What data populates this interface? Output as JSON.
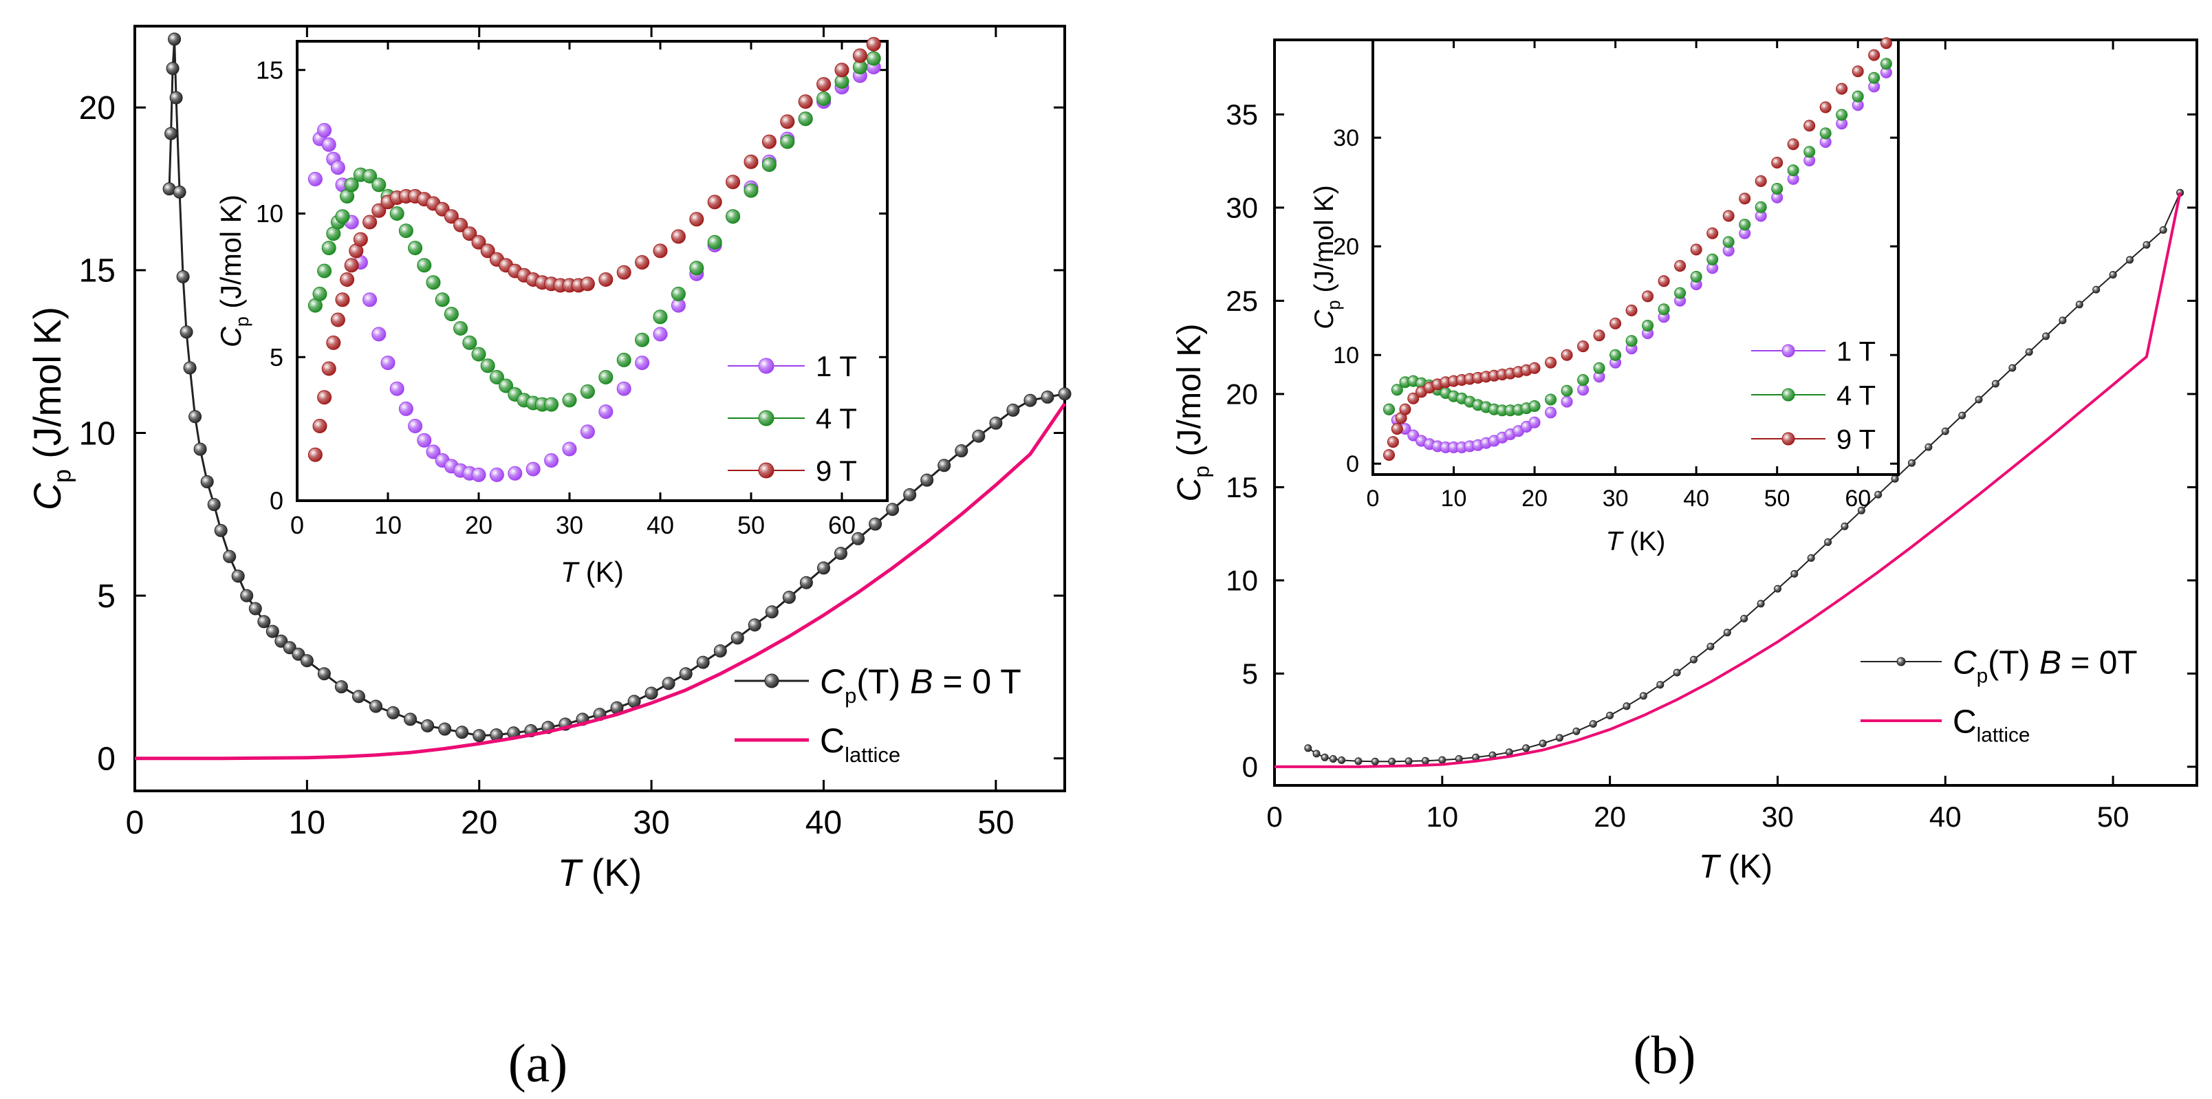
{
  "figure": {
    "panel_a_caption": "(a)",
    "panel_b_caption": "(b)"
  },
  "colors": {
    "zero_field": "#222222",
    "lattice": "#ec0c74",
    "t1": "#a040f0",
    "t4": "#18881e",
    "t9": "#a01818"
  },
  "chart_data": [
    {
      "id": "a-main",
      "type": "scatter",
      "title": "",
      "xlabel": "T (K)",
      "ylabel": "Cp (J/mol K)",
      "xlim": [
        0,
        54
      ],
      "ylim": [
        -1,
        22.5
      ],
      "xticks": [
        0,
        10,
        20,
        30,
        40,
        50
      ],
      "yticks": [
        0,
        5,
        10,
        15,
        20
      ],
      "legend_position": "lower-right",
      "series": [
        {
          "name": "Cp(T) B = 0 T",
          "legend_main": "C",
          "legend_sub": "p",
          "legend_mid": "(T) ",
          "legend_var": "B",
          "legend_tail": " = 0 T",
          "color_key": "zero_field",
          "style": "markers-line",
          "x": [
            2.0,
            2.1,
            2.2,
            2.3,
            2.4,
            2.6,
            2.8,
            3.0,
            3.2,
            3.5,
            3.8,
            4.2,
            4.6,
            5.0,
            5.5,
            6.0,
            6.5,
            7.0,
            7.5,
            8.0,
            8.5,
            9.0,
            9.5,
            10.0,
            11.0,
            12.0,
            13.0,
            14.0,
            15.0,
            16.0,
            17.0,
            18.0,
            19.0,
            20.0,
            21.0,
            22.0,
            23.0,
            24.0,
            25.0,
            26.0,
            27.0,
            28.0,
            29.0,
            30.0,
            31.0,
            32.0,
            33.0,
            34.0,
            35.0,
            36.0,
            37.0,
            38.0,
            39.0,
            40.0,
            41.0,
            42.0,
            43.0,
            44.0,
            45.0,
            46.0,
            47.0,
            48.0,
            49.0,
            50.0,
            51.0,
            52.0,
            53.0,
            54.0
          ],
          "y": [
            17.5,
            19.2,
            21.2,
            22.1,
            20.3,
            17.4,
            14.8,
            13.1,
            12.0,
            10.5,
            9.5,
            8.5,
            7.8,
            7.0,
            6.2,
            5.6,
            5.0,
            4.6,
            4.2,
            3.9,
            3.6,
            3.4,
            3.2,
            3.0,
            2.6,
            2.2,
            1.9,
            1.6,
            1.4,
            1.2,
            1.0,
            0.9,
            0.8,
            0.7,
            0.72,
            0.78,
            0.85,
            0.95,
            1.05,
            1.2,
            1.35,
            1.55,
            1.75,
            2.0,
            2.3,
            2.6,
            2.95,
            3.3,
            3.7,
            4.1,
            4.5,
            4.95,
            5.4,
            5.85,
            6.3,
            6.75,
            7.2,
            7.65,
            8.1,
            8.55,
            9.0,
            9.45,
            9.9,
            10.3,
            10.7,
            11.0,
            11.1,
            11.2
          ]
        },
        {
          "name": "Clattice",
          "legend_main": "C",
          "legend_sub": "lattice",
          "color_key": "lattice",
          "style": "line",
          "x": [
            0,
            5,
            10,
            12,
            14,
            16,
            18,
            20,
            22,
            24,
            26,
            28,
            30,
            32,
            34,
            36,
            38,
            40,
            42,
            44,
            46,
            48,
            50,
            52,
            54
          ],
          "y": [
            0,
            0.0,
            0.02,
            0.05,
            0.1,
            0.18,
            0.3,
            0.45,
            0.62,
            0.82,
            1.06,
            1.35,
            1.7,
            2.1,
            2.6,
            3.15,
            3.75,
            4.4,
            5.1,
            5.85,
            6.65,
            7.5,
            8.4,
            9.35,
            10.9
          ]
        }
      ]
    },
    {
      "id": "a-inset",
      "type": "scatter",
      "title": "",
      "xlabel": "T (K)",
      "ylabel": "Cp (J/mol K)",
      "xlim": [
        0,
        65
      ],
      "ylim": [
        0,
        16
      ],
      "xticks": [
        0,
        10,
        20,
        30,
        40,
        50,
        60
      ],
      "yticks": [
        0,
        5,
        10,
        15
      ],
      "legend_position": "right",
      "series": [
        {
          "name": "1 T",
          "color_key": "t1",
          "style": "markers",
          "x": [
            2,
            2.5,
            3,
            3.5,
            4,
            4.5,
            5,
            6,
            7,
            8,
            9,
            10,
            11,
            12,
            13,
            14,
            15,
            16,
            17,
            18,
            19,
            20,
            22,
            24,
            26,
            28,
            30,
            32,
            34,
            36,
            38,
            40,
            42,
            44,
            46,
            48,
            50,
            52,
            54,
            56,
            58,
            60,
            62,
            63.5
          ],
          "y": [
            11.2,
            12.6,
            12.9,
            12.4,
            11.9,
            11.6,
            11.0,
            9.7,
            8.3,
            7.0,
            5.8,
            4.8,
            3.9,
            3.2,
            2.6,
            2.1,
            1.7,
            1.4,
            1.2,
            1.05,
            0.95,
            0.9,
            0.9,
            0.95,
            1.1,
            1.4,
            1.8,
            2.4,
            3.1,
            3.9,
            4.8,
            5.8,
            6.8,
            7.9,
            8.9,
            9.9,
            10.9,
            11.8,
            12.6,
            13.3,
            13.9,
            14.4,
            14.8,
            15.1
          ]
        },
        {
          "name": "4 T",
          "color_key": "t4",
          "style": "markers",
          "x": [
            2,
            2.5,
            3,
            3.5,
            4,
            4.5,
            5,
            5.5,
            6,
            7,
            8,
            9,
            10,
            11,
            12,
            13,
            14,
            15,
            16,
            17,
            18,
            19,
            20,
            21,
            22,
            23,
            24,
            25,
            26,
            27,
            28,
            30,
            32,
            34,
            36,
            38,
            40,
            42,
            44,
            46,
            48,
            50,
            52,
            54,
            56,
            58,
            60,
            62,
            63.5
          ],
          "y": [
            6.8,
            7.2,
            8.0,
            8.8,
            9.3,
            9.7,
            9.9,
            10.6,
            11.0,
            11.35,
            11.3,
            11.0,
            10.6,
            10.0,
            9.4,
            8.8,
            8.2,
            7.6,
            7.0,
            6.5,
            6.0,
            5.5,
            5.1,
            4.7,
            4.3,
            4.0,
            3.7,
            3.5,
            3.4,
            3.35,
            3.35,
            3.5,
            3.8,
            4.3,
            4.9,
            5.6,
            6.4,
            7.2,
            8.1,
            9.0,
            9.9,
            10.8,
            11.7,
            12.5,
            13.3,
            14.0,
            14.6,
            15.1,
            15.4
          ]
        },
        {
          "name": "9 T",
          "color_key": "t9",
          "style": "markers",
          "x": [
            2,
            2.5,
            3,
            3.5,
            4,
            4.5,
            5,
            5.5,
            6,
            6.5,
            7,
            8,
            9,
            10,
            11,
            12,
            13,
            14,
            15,
            16,
            17,
            18,
            19,
            20,
            21,
            22,
            23,
            24,
            25,
            26,
            27,
            28,
            29,
            30,
            31,
            32,
            34,
            36,
            38,
            40,
            42,
            44,
            46,
            48,
            50,
            52,
            54,
            56,
            58,
            60,
            62,
            63.5
          ],
          "y": [
            1.6,
            2.6,
            3.6,
            4.6,
            5.5,
            6.3,
            7.0,
            7.7,
            8.2,
            8.7,
            9.1,
            9.7,
            10.1,
            10.4,
            10.55,
            10.6,
            10.6,
            10.5,
            10.35,
            10.15,
            9.9,
            9.6,
            9.3,
            9.0,
            8.7,
            8.4,
            8.2,
            8.0,
            7.85,
            7.7,
            7.6,
            7.55,
            7.5,
            7.5,
            7.5,
            7.55,
            7.7,
            7.95,
            8.3,
            8.7,
            9.2,
            9.8,
            10.4,
            11.1,
            11.8,
            12.5,
            13.2,
            13.9,
            14.5,
            15.0,
            15.5,
            15.9
          ]
        }
      ]
    },
    {
      "id": "b-main",
      "type": "scatter",
      "title": "",
      "xlabel": "T (K)",
      "ylabel": "Cp (J/mol K)",
      "xlim": [
        0,
        55
      ],
      "ylim": [
        -1,
        39
      ],
      "xticks": [
        0,
        10,
        20,
        30,
        40,
        50
      ],
      "yticks": [
        0,
        5,
        10,
        15,
        20,
        25,
        30,
        35
      ],
      "legend_position": "lower-right",
      "series": [
        {
          "name": "Cp(T) B = 0T",
          "legend_main": "C",
          "legend_sub": "p",
          "legend_mid": "(T) ",
          "legend_var": "B",
          "legend_tail": " = 0T",
          "color_key": "zero_field",
          "style": "markers-line",
          "x": [
            2.0,
            2.5,
            3.0,
            3.5,
            4.0,
            5.0,
            6.0,
            7.0,
            8.0,
            9.0,
            10.0,
            11.0,
            12.0,
            13.0,
            14.0,
            15.0,
            16.0,
            17.0,
            18.0,
            19.0,
            20.0,
            21.0,
            22.0,
            23.0,
            24.0,
            25.0,
            26.0,
            27.0,
            28.0,
            29.0,
            30.0,
            31.0,
            32.0,
            33.0,
            34.0,
            35.0,
            36.0,
            37.0,
            38.0,
            39.0,
            40.0,
            41.0,
            42.0,
            43.0,
            44.0,
            45.0,
            46.0,
            47.0,
            48.0,
            49.0,
            50.0,
            51.0,
            52.0,
            53.0,
            54.0
          ],
          "y": [
            1.0,
            0.7,
            0.5,
            0.42,
            0.35,
            0.3,
            0.28,
            0.28,
            0.3,
            0.32,
            0.36,
            0.42,
            0.5,
            0.62,
            0.78,
            1.0,
            1.25,
            1.55,
            1.9,
            2.3,
            2.75,
            3.25,
            3.8,
            4.4,
            5.05,
            5.75,
            6.45,
            7.2,
            7.95,
            8.75,
            9.55,
            10.35,
            11.2,
            12.05,
            12.9,
            13.75,
            14.6,
            15.45,
            16.3,
            17.15,
            18.0,
            18.85,
            19.7,
            20.55,
            21.4,
            22.25,
            23.1,
            23.95,
            24.8,
            25.6,
            26.4,
            27.2,
            28.0,
            28.8,
            30.8
          ]
        },
        {
          "name": "Clattice",
          "legend_main": "C",
          "legend_sub": "lattice",
          "color_key": "lattice",
          "style": "line",
          "x": [
            0,
            5,
            8,
            10,
            12,
            14,
            16,
            18,
            20,
            22,
            24,
            26,
            28,
            30,
            32,
            34,
            36,
            38,
            40,
            42,
            44,
            46,
            48,
            50,
            52,
            54
          ],
          "y": [
            0,
            0.0,
            0.05,
            0.12,
            0.3,
            0.55,
            0.9,
            1.4,
            2.0,
            2.75,
            3.6,
            4.55,
            5.6,
            6.7,
            7.9,
            9.15,
            10.45,
            11.8,
            13.2,
            14.6,
            16.05,
            17.5,
            19.0,
            20.5,
            22.0,
            30.8
          ]
        }
      ]
    },
    {
      "id": "b-inset",
      "type": "scatter",
      "title": "",
      "xlabel": "T (K)",
      "ylabel": "Cp (J/mol K)",
      "xlim": [
        0,
        65
      ],
      "ylim": [
        -1,
        39
      ],
      "xticks": [
        0,
        10,
        20,
        30,
        40,
        50,
        60
      ],
      "yticks": [
        0,
        10,
        20,
        30
      ],
      "legend_position": "right",
      "series": [
        {
          "name": "1 T",
          "color_key": "t1",
          "style": "markers",
          "x": [
            2,
            3,
            4,
            5,
            6,
            7,
            8,
            9,
            10,
            11,
            12,
            13,
            14,
            15,
            16,
            17,
            18,
            19,
            20,
            22,
            24,
            26,
            28,
            30,
            32,
            34,
            36,
            38,
            40,
            42,
            44,
            46,
            48,
            50,
            52,
            54,
            56,
            58,
            60,
            62,
            63.5
          ],
          "y": [
            5.0,
            4.0,
            3.2,
            2.6,
            2.1,
            1.8,
            1.6,
            1.5,
            1.5,
            1.5,
            1.6,
            1.7,
            1.9,
            2.1,
            2.4,
            2.7,
            3.0,
            3.4,
            3.8,
            4.7,
            5.7,
            6.8,
            8.0,
            9.3,
            10.6,
            12.0,
            13.5,
            15.0,
            16.5,
            18.0,
            19.6,
            21.2,
            22.8,
            24.5,
            26.2,
            27.9,
            29.6,
            31.3,
            33.0,
            34.7,
            36.0
          ]
        },
        {
          "name": "4 T",
          "color_key": "t4",
          "style": "markers",
          "x": [
            2,
            3,
            4,
            5,
            6,
            7,
            8,
            9,
            10,
            11,
            12,
            13,
            14,
            15,
            16,
            17,
            18,
            19,
            20,
            22,
            24,
            26,
            28,
            30,
            32,
            34,
            36,
            38,
            40,
            42,
            44,
            46,
            48,
            50,
            52,
            54,
            56,
            58,
            60,
            62,
            63.5
          ],
          "y": [
            5.0,
            6.8,
            7.5,
            7.6,
            7.4,
            7.2,
            6.8,
            6.5,
            6.2,
            6.0,
            5.7,
            5.4,
            5.2,
            5.0,
            4.9,
            4.9,
            4.95,
            5.1,
            5.3,
            5.9,
            6.7,
            7.7,
            8.8,
            10.0,
            11.3,
            12.7,
            14.2,
            15.7,
            17.2,
            18.8,
            20.4,
            22.0,
            23.6,
            25.3,
            27.0,
            28.7,
            30.4,
            32.1,
            33.8,
            35.5,
            36.8
          ]
        },
        {
          "name": "9 T",
          "color_key": "t9",
          "style": "markers",
          "x": [
            2,
            2.5,
            3,
            3.5,
            4,
            5,
            6,
            7,
            8,
            9,
            10,
            11,
            12,
            13,
            14,
            15,
            16,
            17,
            18,
            19,
            20,
            22,
            24,
            26,
            28,
            30,
            32,
            34,
            36,
            38,
            40,
            42,
            44,
            46,
            48,
            50,
            52,
            54,
            56,
            58,
            60,
            62,
            63.5
          ],
          "y": [
            0.8,
            2.0,
            3.2,
            4.2,
            5.0,
            6.0,
            6.6,
            7.0,
            7.3,
            7.5,
            7.6,
            7.7,
            7.8,
            7.9,
            8.0,
            8.1,
            8.2,
            8.3,
            8.45,
            8.6,
            8.8,
            9.3,
            10.0,
            10.8,
            11.8,
            12.9,
            14.1,
            15.4,
            16.8,
            18.2,
            19.7,
            21.2,
            22.8,
            24.4,
            26.0,
            27.7,
            29.4,
            31.1,
            32.8,
            34.5,
            36.1,
            37.6,
            38.7
          ]
        }
      ]
    }
  ]
}
